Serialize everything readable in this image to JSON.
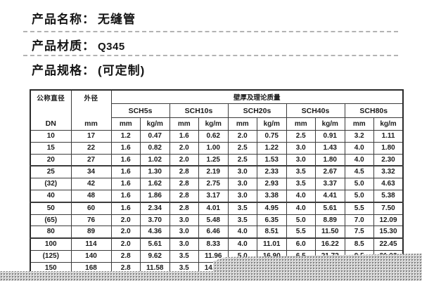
{
  "product_info": {
    "rows": [
      {
        "label": "产品名称：",
        "value": "无缝管"
      },
      {
        "label": "产品材质：",
        "value": "Q345"
      },
      {
        "label": "产品规格：",
        "value": "(可定制)"
      }
    ]
  },
  "table": {
    "header": {
      "dn_line1": "公称直径",
      "dn_line2": "DN",
      "od_line1": "外径",
      "od_line2": "mm",
      "span_title": "壁厚及理论质量",
      "sch_groups": [
        "SCH5s",
        "SCH10s",
        "SCH20s",
        "SCH40s",
        "SCH80s"
      ],
      "sub_cols": [
        "mm",
        "kg/m"
      ]
    },
    "rows": [
      [
        "10",
        "17",
        "1.2",
        "0.47",
        "1.6",
        "0.62",
        "2.0",
        "0.75",
        "2.5",
        "0.91",
        "3.2",
        "1.11"
      ],
      [
        "15",
        "22",
        "1.6",
        "0.82",
        "2.0",
        "1.00",
        "2.5",
        "1.22",
        "3.0",
        "1.43",
        "4.0",
        "1.80"
      ],
      [
        "20",
        "27",
        "1.6",
        "1.02",
        "2.0",
        "1.25",
        "2.5",
        "1.53",
        "3.0",
        "1.80",
        "4.0",
        "2.30"
      ],
      [
        "25",
        "34",
        "1.6",
        "1.30",
        "2.8",
        "2.19",
        "3.0",
        "2.33",
        "3.5",
        "2.67",
        "4.5",
        "3.32"
      ],
      [
        "(32)",
        "42",
        "1.6",
        "1.62",
        "2.8",
        "2.75",
        "3.0",
        "2.93",
        "3.5",
        "3.37",
        "5.0",
        "4.63"
      ],
      [
        "40",
        "48",
        "1.6",
        "1.86",
        "2.8",
        "3.17",
        "3.0",
        "3.38",
        "4.0",
        "4.41",
        "5.0",
        "5.38"
      ],
      [
        "50",
        "60",
        "1.6",
        "2.34",
        "2.8",
        "4.01",
        "3.5",
        "4.95",
        "4.0",
        "5.61",
        "5.5",
        "7.50"
      ],
      [
        "(65)",
        "76",
        "2.0",
        "3.70",
        "3.0",
        "5.48",
        "3.5",
        "6.35",
        "5.0",
        "8.89",
        "7.0",
        "12.09"
      ],
      [
        "80",
        "89",
        "2.0",
        "4.36",
        "3.0",
        "6.46",
        "4.0",
        "8.51",
        "5.5",
        "11.50",
        "7.5",
        "15.30"
      ],
      [
        "100",
        "114",
        "2.0",
        "5.61",
        "3.0",
        "8.33",
        "4.0",
        "11.01",
        "6.0",
        "16.22",
        "8.5",
        "22.45"
      ],
      [
        "(125)",
        "140",
        "2.8",
        "9.62",
        "3.5",
        "11.96",
        "5.0",
        "16.90",
        "6.5",
        "21.72",
        "9.5",
        "31.03"
      ],
      [
        "150",
        "168",
        "2.8",
        "11.58",
        "3.5",
        "14.61",
        "",
        "",
        "",
        "",
        "",
        ""
      ]
    ]
  },
  "colors": {
    "text": "#1a1a1a",
    "table_border": "#3b3b3b",
    "dashed_separator": "#b3b3b3",
    "halftone_base": "#d0d0d0",
    "halftone_dot": "#6e6e6e",
    "background": "#ffffff"
  }
}
